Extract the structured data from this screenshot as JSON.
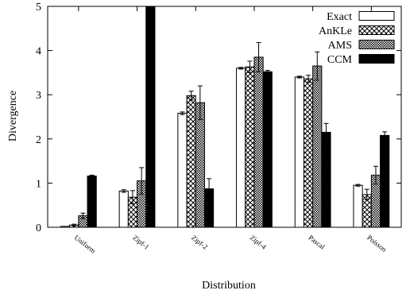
{
  "chart_data": {
    "type": "bar",
    "xlabel": "Distribution",
    "ylabel": "Divergence",
    "ylim": [
      0,
      5
    ],
    "yticks": [
      "0",
      "1",
      "2",
      "3",
      "4",
      "5"
    ],
    "categories": [
      "Uniform",
      "Zipf-1",
      "Zipf-2",
      "Zipf-4",
      "Pascal",
      "Poisson"
    ],
    "legend_position": "top-right",
    "grid": false,
    "error_bars": true,
    "series": [
      {
        "name": "Exact",
        "pattern": "white",
        "values": [
          0.02,
          0.82,
          2.58,
          3.6,
          3.4,
          0.95
        ],
        "errors": [
          0.0,
          0.03,
          0.03,
          0.02,
          0.02,
          0.02
        ]
      },
      {
        "name": "AnKLe",
        "pattern": "crosshatch",
        "values": [
          0.05,
          0.68,
          2.98,
          3.63,
          3.36,
          0.74
        ],
        "errors": [
          0.02,
          0.15,
          0.1,
          0.13,
          0.08,
          0.12
        ]
      },
      {
        "name": "AMS",
        "pattern": "checker",
        "values": [
          0.26,
          1.05,
          2.82,
          3.85,
          3.65,
          1.18
        ],
        "errors": [
          0.06,
          0.3,
          0.38,
          0.33,
          0.32,
          0.2
        ]
      },
      {
        "name": "CCM",
        "pattern": "black",
        "values": [
          1.16,
          5.0,
          0.87,
          3.52,
          2.15,
          2.08
        ],
        "errors": [
          0.02,
          0.0,
          0.23,
          0.03,
          0.2,
          0.08
        ]
      }
    ]
  }
}
